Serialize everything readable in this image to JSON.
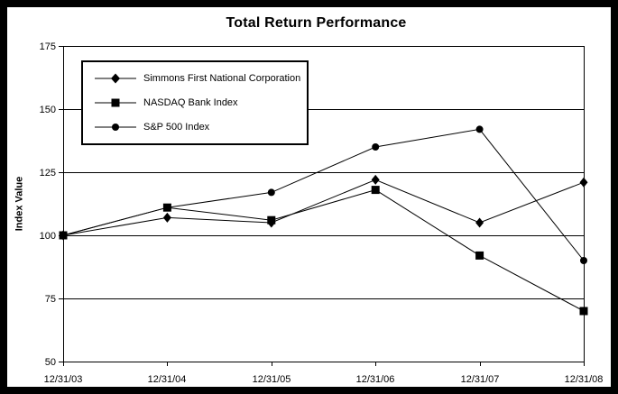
{
  "window": {
    "title": "Total Return Performance"
  },
  "chart_data": {
    "type": "line",
    "title": "Total Return Performance",
    "xlabel": "",
    "ylabel": "Index Value",
    "categories": [
      "12/31/03",
      "12/31/04",
      "12/31/05",
      "12/31/06",
      "12/31/07",
      "12/31/08"
    ],
    "y_ticks": [
      50,
      75,
      100,
      125,
      150,
      175
    ],
    "ylim": [
      50,
      175
    ],
    "grid": true,
    "grid_axis": "y",
    "plot_frame": true,
    "legend_position": "inside-upper-left",
    "draw_order": [
      2,
      0,
      1
    ],
    "series": [
      {
        "name": "Simmons First National Corporation",
        "marker": "diamond",
        "color": "#000000",
        "values": [
          100,
          107,
          105,
          122,
          105,
          121
        ]
      },
      {
        "name": "NASDAQ Bank Index",
        "marker": "square",
        "color": "#000000",
        "values": [
          100,
          111,
          106,
          118,
          92,
          70
        ]
      },
      {
        "name": "S&P 500 Index",
        "marker": "circle",
        "color": "#000000",
        "values": [
          100,
          111,
          117,
          135,
          142,
          90
        ]
      }
    ],
    "colors": {
      "line": "#000000",
      "background": "#ffffff",
      "outer_border": "#000000"
    }
  }
}
